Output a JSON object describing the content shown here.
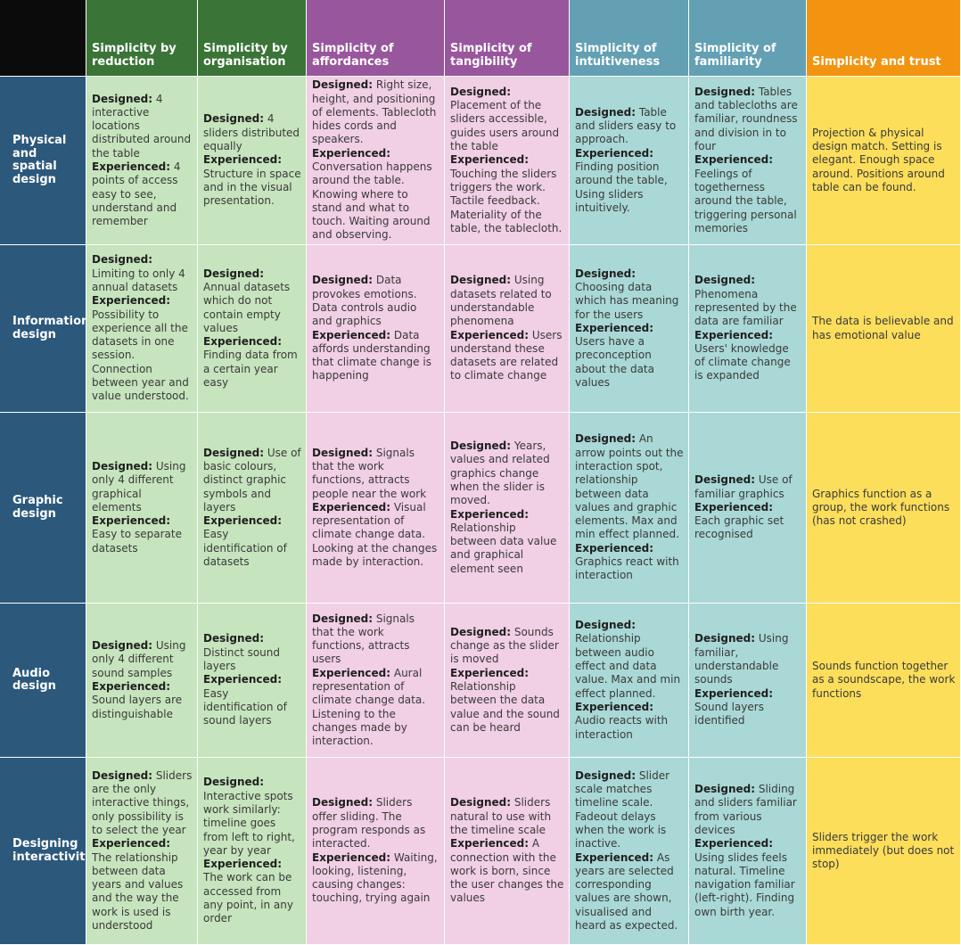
{
  "columns": [
    "Simplicity by reduction",
    "Simplicity by organisation",
    "Simplicity of affordances",
    "Simplicity of tangibility",
    "Simplicity of intuitiveness",
    "Simplicity of familiarity",
    "Simplicity and trust"
  ],
  "colors": {
    "corner": "#0b0b0b",
    "row_header": "#2c587c",
    "reduction": "#c6e4bd",
    "affordances": "#f1cfe4",
    "intuitiveness": "#a9d8d6",
    "trust": "#fcde5b",
    "header_green": "#3a7437",
    "header_purple": "#98569d",
    "header_teal": "#63a0b3",
    "header_orange": "#f2940f"
  },
  "rows": [
    {
      "label": "Physical and spatial design",
      "cells": [
        {
          "designed": "4 interactive locations distributed around the table",
          "experienced": "4 points of access easy to see, understand and remember"
        },
        {
          "designed": "4 sliders distributed equally",
          "experienced": "Structure in space and in the visual presentation."
        },
        {
          "designed": "Right size, height, and positioning of elements. Tablecloth hides cords and speakers.",
          "experienced": "Conversation happens around the table. Knowing where to stand and what to touch. Waiting around and observing."
        },
        {
          "designed": "Placement of the sliders accessible, guides users around the table",
          "experienced": "Touching the sliders triggers the work. Tactile feedback. Materiality of the table, the tablecloth."
        },
        {
          "designed": "Table and sliders easy to approach.",
          "experienced": "Finding position around the table, Using sliders intuitively."
        },
        {
          "designed": "Tables and tablecloths are familiar, roundness and division in to four",
          "experienced": "Feelings of togetherness around the table, triggering personal memories"
        },
        {
          "text": "Projection & physical design match. Setting is elegant. Enough space around. Positions around table can be found."
        }
      ]
    },
    {
      "label": "Information design",
      "cells": [
        {
          "designed": "Limiting to only 4 annual datasets",
          "experienced": "Possibility to experience all the datasets in one session. Connection between year and value understood."
        },
        {
          "designed": "Annual datasets which do not contain empty values",
          "experienced": "Finding data from a certain year easy"
        },
        {
          "designed": "Data provokes emotions. Data controls audio and graphics",
          "experienced": "Data affords understanding that climate change is happening"
        },
        {
          "designed": "Using datasets related to understandable phenomena",
          "experienced": "Users understand these datasets are related to climate change"
        },
        {
          "designed": "Choosing data which has meaning for the users",
          "experienced": "Users have a preconception about the data values"
        },
        {
          "designed": "Phenomena represented by the data are familiar",
          "experienced": "Users' knowledge of climate change is expanded"
        },
        {
          "text": "The data is believable and has emotional value"
        }
      ]
    },
    {
      "label": "Graphic design",
      "cells": [
        {
          "designed": "Using only 4 different graphical elements",
          "experienced": "Easy to separate datasets"
        },
        {
          "designed": "Use of basic colours, distinct graphic symbols and layers",
          "experienced": "Easy identification of datasets"
        },
        {
          "designed": "Signals that the work functions, attracts people near the work",
          "experienced": "Visual representation of climate change data. Looking at the changes made by interaction."
        },
        {
          "designed": "Years, values and related graphics change when the slider is moved.",
          "experienced": "Relationship between data value and graphical element seen"
        },
        {
          "designed": "An arrow points out the interaction spot, relationship between data values and graphic elements. Max and min effect planned.",
          "experienced": "Graphics react with interaction"
        },
        {
          "designed": "Use of familiar graphics",
          "experienced": "Each graphic set recognised"
        },
        {
          "text": "Graphics function as a group, the work functions (has not crashed)"
        }
      ]
    },
    {
      "label": "Audio design",
      "cells": [
        {
          "designed": "Using only 4 different sound samples",
          "experienced": "Sound layers are distinguishable"
        },
        {
          "designed": "Distinct sound layers",
          "experienced": "Easy identification of sound layers"
        },
        {
          "designed": "Signals that the work functions, attracts users",
          "experienced": "Aural representation of climate change data. Listening to the changes made by interaction."
        },
        {
          "designed": "Sounds change as the slider is moved",
          "experienced": "Relationship between the data value and the sound can be heard"
        },
        {
          "designed": "Relationship between audio effect and data value. Max and min effect planned.",
          "experienced": "Audio reacts with interaction"
        },
        {
          "designed": "Using familiar, understandable sounds",
          "experienced": "Sound layers identified"
        },
        {
          "text": "Sounds function together as a soundscape, the work functions"
        }
      ]
    },
    {
      "label": "Designing interactivity",
      "cells": [
        {
          "designed": "Sliders are the only interactive things, only possibility is to select the year",
          "experienced": "The relationship between data years and values and the way the work is used is understood"
        },
        {
          "designed": "Interactive spots work similarly: timeline goes from left to right, year by year",
          "experienced": "The work can be accessed from any point, in any order"
        },
        {
          "designed": "Sliders offer sliding. The program responds as interacted.",
          "experienced": "Waiting, looking, listening, causing changes: touching, trying again"
        },
        {
          "designed": "Sliders natural to use with the timeline scale",
          "experienced": "A connection with the work is born, since the user changes the values"
        },
        {
          "designed": "Slider scale matches timeline scale. Fadeout delays when the work is inactive.",
          "experienced": "As years are selected corresponding values are shown, visualised and heard as expected."
        },
        {
          "designed": "Sliding and sliders familiar from various devices",
          "experienced": "Using slides feels natural. Timeline navigation familiar (left-right). Finding own birth year."
        },
        {
          "text": "Sliders trigger the work immediately (but does not stop)"
        }
      ]
    }
  ],
  "labels": {
    "designed": "Designed:",
    "experienced": "Experienced:"
  }
}
